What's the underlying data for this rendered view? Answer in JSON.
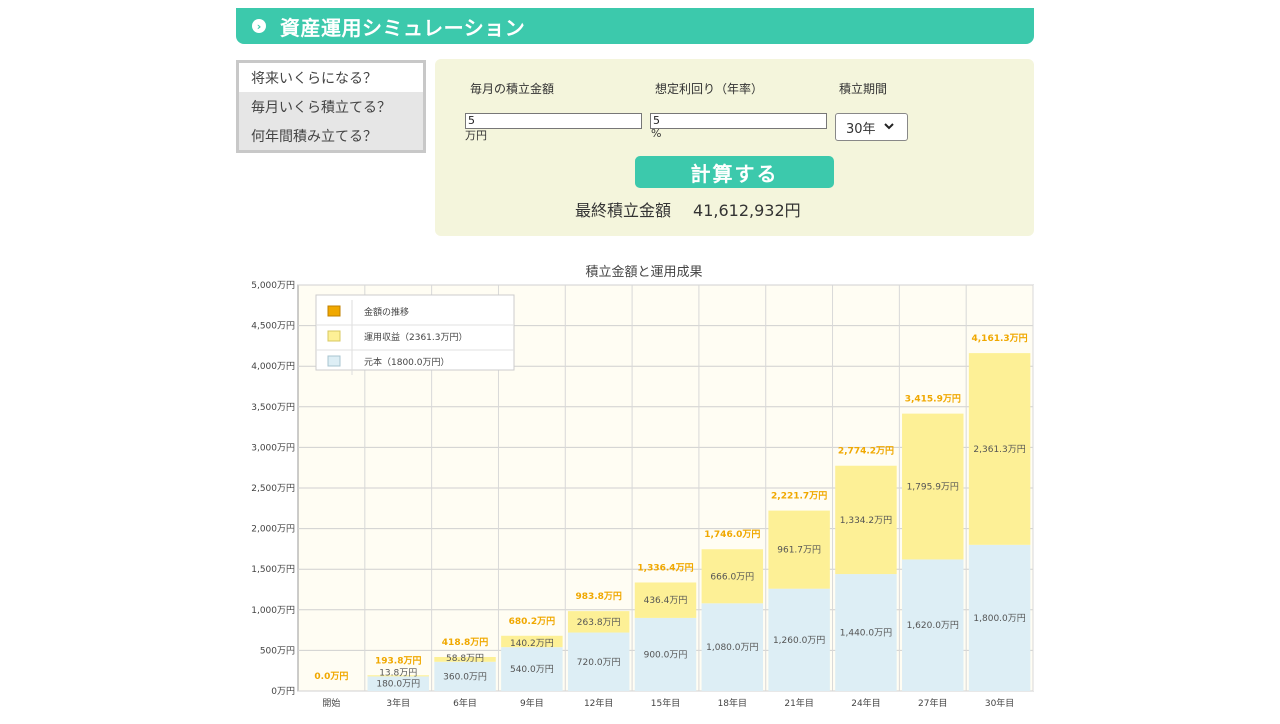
{
  "header": {
    "icon": "chevron-right-circle-icon",
    "title": "資産運用シミュレーション"
  },
  "tabs": [
    {
      "label": "将来いくらになる？",
      "active": true
    },
    {
      "label": "毎月いくら積立てる？",
      "active": false
    },
    {
      "label": "何年間積み立てる？",
      "active": false
    }
  ],
  "form": {
    "monthly_label": "毎月の積立金額",
    "monthly_value": "5",
    "monthly_unit": "万円",
    "rate_label": "想定利回り（年率）",
    "rate_value": "5",
    "rate_unit": "%",
    "period_label": "積立期間",
    "period_value": "30年",
    "calc_button": "計算する",
    "result_label": "最終積立金額",
    "result_value": "41,612,932円"
  },
  "colors": {
    "accent": "#3cc9ac",
    "principal": "#ddeef5",
    "profit": "#fdf096",
    "total_label": "#f0a800",
    "form_bg": "#f4f5dc"
  },
  "chart_data": {
    "type": "bar",
    "title": "積立金額と運用成果",
    "stacked": true,
    "categories": [
      "開始",
      "3年目",
      "6年目",
      "9年目",
      "12年目",
      "15年目",
      "18年目",
      "21年目",
      "24年目",
      "27年目",
      "30年目"
    ],
    "series": [
      {
        "name": "元本（1800.0万円）",
        "values": [
          0,
          180.0,
          360.0,
          540.0,
          720.0,
          900.0,
          1080.0,
          1260.0,
          1440.0,
          1620.0,
          1800.0
        ],
        "labels": [
          "",
          "180.0万円",
          "360.0万円",
          "540.0万円",
          "720.0万円",
          "900.0万円",
          "1,080.0万円",
          "1,260.0万円",
          "1,440.0万円",
          "1,620.0万円",
          "1,800.0万円"
        ]
      },
      {
        "name": "運用収益（2361.3万円）",
        "values": [
          0,
          13.8,
          58.8,
          140.2,
          263.8,
          436.4,
          666.0,
          961.7,
          1334.2,
          1795.9,
          2361.3
        ],
        "labels": [
          "",
          "13.8万円",
          "58.8万円",
          "140.2万円",
          "263.8万円",
          "436.4万円",
          "666.0万円",
          "961.7万円",
          "1,334.2万円",
          "1,795.9万円",
          "2,361.3万円"
        ]
      }
    ],
    "totals": {
      "name": "金額の推移",
      "values": [
        0.0,
        193.8,
        418.8,
        680.2,
        983.8,
        1336.4,
        1746.0,
        2221.7,
        2774.2,
        3415.9,
        4161.3
      ],
      "labels": [
        "0.0万円",
        "193.8万円",
        "418.8万円",
        "680.2万円",
        "983.8万円",
        "1,336.4万円",
        "1,746.0万円",
        "2,221.7万円",
        "2,774.2万円",
        "3,415.9万円",
        "4,161.3万円"
      ]
    },
    "ylim": [
      0,
      5000
    ],
    "yticks": [
      0,
      500,
      1000,
      1500,
      2000,
      2500,
      3000,
      3500,
      4000,
      4500,
      5000
    ],
    "ytick_labels": [
      "0万円",
      "500万円",
      "1,000万円",
      "1,500万円",
      "2,000万円",
      "2,500万円",
      "3,000万円",
      "3,500万円",
      "4,000万円",
      "4,500万円",
      "5,000万円"
    ],
    "grid": true,
    "legend_position": "top-left"
  }
}
